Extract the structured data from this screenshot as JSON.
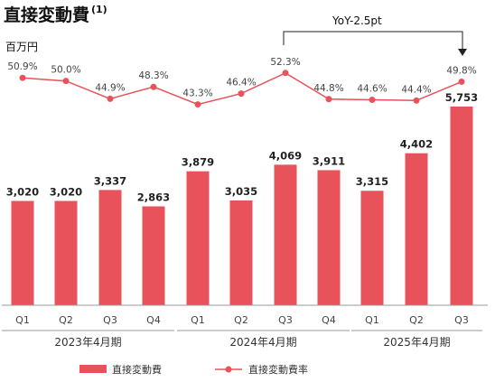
{
  "header": {
    "title": "直接変動費",
    "title_note": "(1)",
    "unit": "百万円"
  },
  "annotation": {
    "text": "YoY-2.5pt"
  },
  "colors": {
    "bar": "#E8525A",
    "line": "#E8525A"
  },
  "chart_data": {
    "type": "bar",
    "categories": [
      "Q1",
      "Q2",
      "Q3",
      "Q4",
      "Q1",
      "Q2",
      "Q3",
      "Q4",
      "Q1",
      "Q2",
      "Q3"
    ],
    "groups": [
      {
        "label": "2023年4月期",
        "count": 4
      },
      {
        "label": "2024年4月期",
        "count": 4
      },
      {
        "label": "2025年4月期",
        "count": 3
      }
    ],
    "series": [
      {
        "name": "直接変動費",
        "type": "bar",
        "values": [
          3020,
          3020,
          3337,
          2863,
          3879,
          3035,
          4069,
          3911,
          3315,
          4402,
          5753
        ],
        "labels": [
          "3,020",
          "3,020",
          "3,337",
          "2,863",
          "3,879",
          "3,035",
          "4,069",
          "3,911",
          "3,315",
          "4,402",
          "5,753"
        ]
      },
      {
        "name": "直接変動費率",
        "type": "line",
        "values": [
          50.9,
          50.0,
          44.9,
          48.3,
          43.3,
          46.4,
          52.3,
          44.8,
          44.6,
          44.4,
          49.8
        ],
        "labels": [
          "50.9%",
          "50.0%",
          "44.9%",
          "48.3%",
          "43.3%",
          "46.4%",
          "52.3%",
          "44.8%",
          "44.6%",
          "44.4%",
          "49.8%"
        ]
      }
    ],
    "legend": "bottom"
  }
}
